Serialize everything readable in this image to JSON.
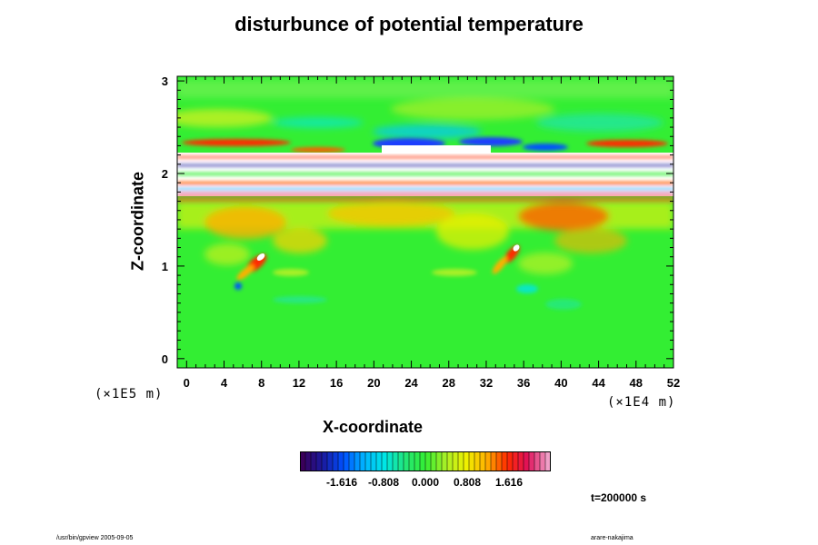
{
  "chart_data": {
    "type": "heatmap",
    "title": "disturbunce of potential temperature",
    "xlabel": "X-coordinate",
    "ylabel": "Z-coordinate",
    "x_unit": "(×1E4 m)",
    "y_unit": "(×1E5 m)",
    "xlim": [
      -1,
      52
    ],
    "ylim": [
      -0.1,
      3.05
    ],
    "x_ticks": [
      "0",
      "4",
      "8",
      "12",
      "16",
      "20",
      "24",
      "28",
      "32",
      "36",
      "40",
      "44",
      "48",
      "52"
    ],
    "y_ticks": [
      "0",
      "1",
      "2",
      "3"
    ],
    "colorbar": {
      "range": [
        -2.424,
        2.424
      ],
      "tick_labels": [
        "-1.616",
        "-0.808",
        "0.000",
        "0.808",
        "1.616"
      ],
      "colormap": [
        "#3a005a",
        "#1a1aa0",
        "#0050ff",
        "#00b4ff",
        "#00e6e6",
        "#22e67a",
        "#33ee33",
        "#aaf026",
        "#f0f000",
        "#ffb000",
        "#ff2a00",
        "#e0105a",
        "#f0a0c8"
      ]
    },
    "background_value_color": "#33ee33",
    "time_label": "t=200000 s"
  },
  "footer": {
    "left": "/usr/bin/gpview 2005-09-05",
    "right": "arare-nakajima"
  }
}
